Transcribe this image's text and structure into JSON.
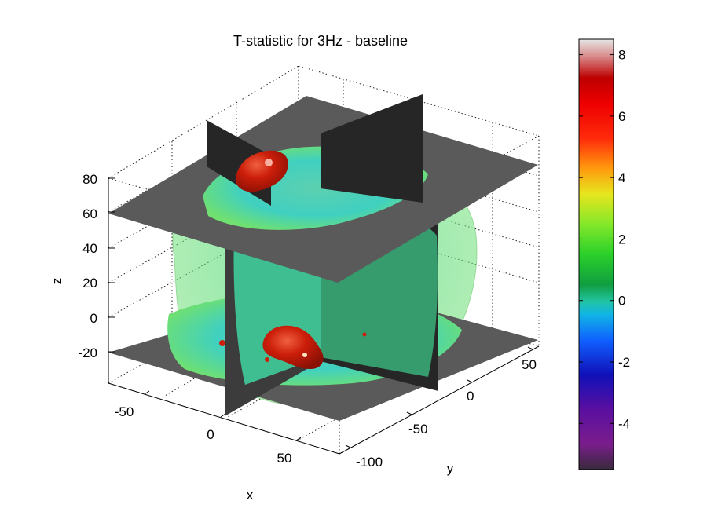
{
  "chart_data": {
    "type": "3d-volume-slice",
    "title": "T-statistic for 3Hz - baseline",
    "xlabel": "x",
    "ylabel": "y",
    "zlabel": "z",
    "x_ticks": [
      -50,
      0,
      50
    ],
    "y_ticks": [
      -100,
      -50,
      0,
      50
    ],
    "z_ticks": [
      -20,
      0,
      20,
      40,
      60,
      80
    ],
    "xlim": [
      -75,
      75
    ],
    "ylim": [
      -115,
      80
    ],
    "zlim": [
      -38,
      95
    ],
    "slices": {
      "x": 0,
      "y": 0,
      "z": [
        -20,
        60
      ]
    },
    "colorbar": {
      "range": [
        -5.5,
        8.5
      ],
      "ticks": [
        -4,
        -2,
        0,
        2,
        4,
        6,
        8
      ],
      "colormap": "spectral (dark-purple → blue → cyan → green → yellow → orange → red → white)"
    },
    "grid": true,
    "colors": {
      "slice_plane": "#595959",
      "slice_plane_dark": "#262626",
      "brain_surface": "#4cd64c",
      "cluster": "#cc1e0a"
    }
  }
}
